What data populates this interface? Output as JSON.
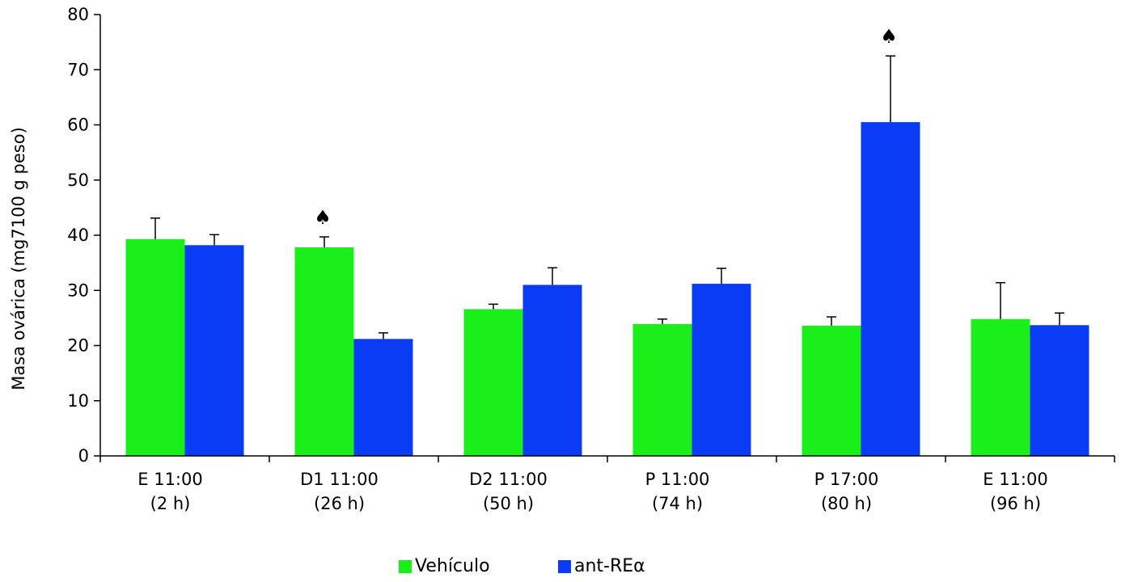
{
  "chart_data": {
    "type": "bar",
    "title": "",
    "xlabel": "",
    "ylabel": "Masa ovárica (mg7100 g peso)",
    "ylim": [
      0,
      80
    ],
    "yticks": [
      0,
      10,
      20,
      30,
      40,
      50,
      60,
      70,
      80
    ],
    "grid": false,
    "legend_position": "bottom-center",
    "categories": [
      [
        "E  11:00",
        "(2 h)"
      ],
      [
        "D1 11:00",
        "(26 h)"
      ],
      [
        "D2 11:00",
        "(50 h)"
      ],
      [
        "P  11:00",
        "(74 h)"
      ],
      [
        "P  17:00",
        "(80 h)"
      ],
      [
        "E 11:00",
        "(96 h)"
      ]
    ],
    "series": [
      {
        "name": "Vehículo",
        "color": "#1aef1a",
        "values": [
          39.3,
          37.8,
          26.6,
          23.9,
          23.6,
          24.8
        ],
        "errors": [
          3.8,
          1.9,
          0.9,
          0.9,
          1.6,
          6.6
        ]
      },
      {
        "name": "ant-REα",
        "color": "#0a3cf5",
        "values": [
          38.2,
          21.2,
          31.0,
          31.2,
          60.5,
          23.7
        ],
        "errors": [
          1.9,
          1.1,
          3.1,
          2.8,
          12.0,
          2.2
        ]
      }
    ],
    "annotations": [
      {
        "text": "♠",
        "category_index": 1,
        "series_index": 0
      },
      {
        "text": "♠",
        "category_index": 4,
        "series_index": 1
      }
    ]
  }
}
